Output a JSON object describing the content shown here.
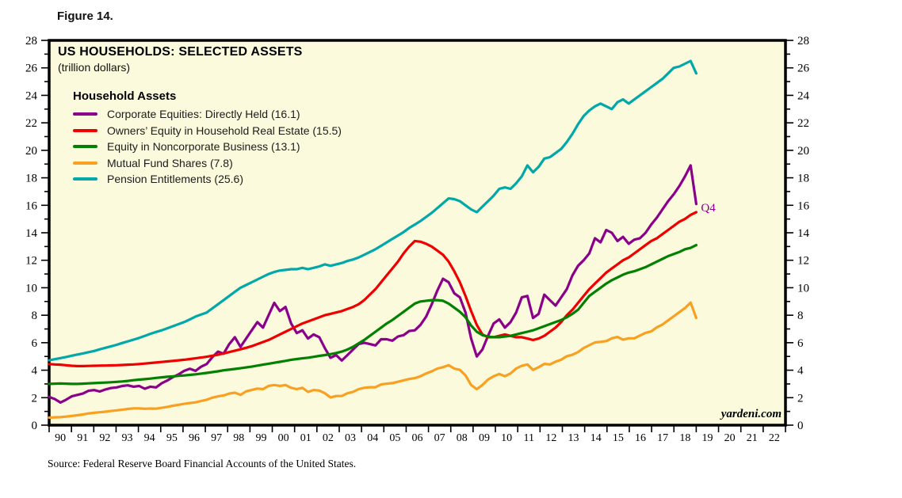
{
  "figure_label": "Figure 14.",
  "chart": {
    "title": "US HOUSEHOLDS: SELECTED ASSETS",
    "subtitle": "(trillion dollars)",
    "legend_header": "Household Assets",
    "annotation": "Q4",
    "watermark": "yardeni.com"
  },
  "source": "Source: Federal Reserve Board Financial Accounts of the United States.",
  "chart_data": {
    "type": "line",
    "title": "US HOUSEHOLDS: SELECTED ASSETS",
    "subtitle": "(trillion dollars)",
    "background_color": "#FBFADC",
    "frame_color": "#000000",
    "x_start": 1990,
    "x_step_years": 0.25,
    "x_axis": {
      "range": [
        1990,
        2023
      ],
      "tick_labels": [
        "90",
        "91",
        "92",
        "93",
        "94",
        "95",
        "96",
        "97",
        "98",
        "99",
        "00",
        "01",
        "02",
        "03",
        "04",
        "05",
        "06",
        "07",
        "08",
        "09",
        "10",
        "11",
        "12",
        "13",
        "14",
        "15",
        "16",
        "17",
        "18",
        "19",
        "20",
        "21",
        "22"
      ]
    },
    "y_axis": {
      "range": [
        0,
        28
      ],
      "major_step": 2,
      "minor_step": 1,
      "labels_on_both_sides": true
    },
    "annotation": {
      "text": "Q4",
      "value": 16.1,
      "color": "#8B008B"
    },
    "series": [
      {
        "name": "Corporate Equities: Directly Held (16.1)",
        "color": "#8B008B",
        "last_value": 16.1,
        "values": [
          2.05,
          1.9,
          1.65,
          1.85,
          2.1,
          2.2,
          2.3,
          2.5,
          2.55,
          2.45,
          2.6,
          2.7,
          2.75,
          2.85,
          2.9,
          2.8,
          2.85,
          2.65,
          2.8,
          2.75,
          3.05,
          3.25,
          3.5,
          3.7,
          3.95,
          4.1,
          3.95,
          4.25,
          4.45,
          4.95,
          5.35,
          5.2,
          5.9,
          6.4,
          5.7,
          6.3,
          6.9,
          7.5,
          7.1,
          8.0,
          8.9,
          8.3,
          8.6,
          7.4,
          6.7,
          6.9,
          6.3,
          6.6,
          6.4,
          5.6,
          4.9,
          5.1,
          4.7,
          5.1,
          5.5,
          5.9,
          6.0,
          5.9,
          5.8,
          6.25,
          6.25,
          6.15,
          6.45,
          6.55,
          6.85,
          6.9,
          7.3,
          7.9,
          8.8,
          9.8,
          10.65,
          10.4,
          9.6,
          9.3,
          8.2,
          6.3,
          5.0,
          5.5,
          6.5,
          7.4,
          7.7,
          7.1,
          7.5,
          8.2,
          9.3,
          9.4,
          7.8,
          8.1,
          9.5,
          9.1,
          8.7,
          9.3,
          9.9,
          10.9,
          11.6,
          12.0,
          12.5,
          13.6,
          13.3,
          14.2,
          14.0,
          13.4,
          13.7,
          13.2,
          13.5,
          13.6,
          14.0,
          14.6,
          15.1,
          15.7,
          16.3,
          16.8,
          17.4,
          18.1,
          18.9,
          16.1
        ]
      },
      {
        "name": "Owners’ Equity in Household Real Estate (15.5)",
        "color": "#EE0000",
        "last_value": 15.5,
        "values": [
          4.45,
          4.42,
          4.4,
          4.36,
          4.32,
          4.3,
          4.3,
          4.31,
          4.32,
          4.33,
          4.34,
          4.35,
          4.36,
          4.38,
          4.4,
          4.42,
          4.45,
          4.48,
          4.52,
          4.56,
          4.6,
          4.64,
          4.68,
          4.72,
          4.76,
          4.81,
          4.86,
          4.92,
          4.98,
          5.05,
          5.13,
          5.22,
          5.32,
          5.42,
          5.52,
          5.63,
          5.75,
          5.9,
          6.05,
          6.2,
          6.4,
          6.6,
          6.8,
          7.0,
          7.2,
          7.4,
          7.55,
          7.7,
          7.85,
          8.0,
          8.1,
          8.2,
          8.3,
          8.45,
          8.6,
          8.8,
          9.1,
          9.5,
          9.9,
          10.4,
          10.9,
          11.4,
          11.9,
          12.5,
          13.0,
          13.4,
          13.35,
          13.2,
          13.0,
          12.7,
          12.4,
          11.9,
          11.2,
          10.4,
          9.4,
          8.3,
          7.3,
          6.6,
          6.4,
          6.4,
          6.5,
          6.6,
          6.5,
          6.4,
          6.4,
          6.3,
          6.2,
          6.3,
          6.5,
          6.8,
          7.1,
          7.5,
          8.0,
          8.4,
          8.9,
          9.4,
          9.9,
          10.3,
          10.7,
          11.1,
          11.4,
          11.7,
          12.0,
          12.2,
          12.5,
          12.8,
          13.1,
          13.4,
          13.6,
          13.9,
          14.2,
          14.5,
          14.8,
          15.0,
          15.3,
          15.5
        ]
      },
      {
        "name": "Equity in Noncorporate Business (13.1)",
        "color": "#018001",
        "last_value": 13.1,
        "values": [
          3.0,
          3.02,
          3.03,
          3.02,
          3.0,
          3.0,
          3.02,
          3.04,
          3.06,
          3.08,
          3.1,
          3.12,
          3.15,
          3.18,
          3.22,
          3.27,
          3.31,
          3.35,
          3.39,
          3.44,
          3.48,
          3.52,
          3.55,
          3.59,
          3.62,
          3.66,
          3.7,
          3.75,
          3.8,
          3.86,
          3.92,
          3.99,
          4.04,
          4.09,
          4.14,
          4.2,
          4.26,
          4.33,
          4.4,
          4.47,
          4.54,
          4.61,
          4.68,
          4.76,
          4.81,
          4.86,
          4.91,
          4.97,
          5.04,
          5.1,
          5.17,
          5.25,
          5.35,
          5.5,
          5.7,
          5.95,
          6.2,
          6.5,
          6.8,
          7.1,
          7.4,
          7.65,
          7.95,
          8.25,
          8.55,
          8.85,
          9.0,
          9.05,
          9.1,
          9.1,
          9.05,
          8.85,
          8.55,
          8.25,
          7.85,
          7.25,
          6.8,
          6.55,
          6.45,
          6.4,
          6.4,
          6.45,
          6.5,
          6.6,
          6.7,
          6.8,
          6.9,
          7.05,
          7.2,
          7.35,
          7.5,
          7.65,
          7.85,
          8.1,
          8.4,
          8.9,
          9.4,
          9.7,
          10.0,
          10.3,
          10.55,
          10.75,
          10.95,
          11.1,
          11.2,
          11.35,
          11.5,
          11.7,
          11.9,
          12.1,
          12.3,
          12.45,
          12.6,
          12.8,
          12.9,
          13.1
        ]
      },
      {
        "name": "Mutual Fund Shares (7.8)",
        "color": "#FAA021",
        "last_value": 7.8,
        "values": [
          0.55,
          0.57,
          0.58,
          0.62,
          0.67,
          0.72,
          0.78,
          0.85,
          0.9,
          0.94,
          0.98,
          1.03,
          1.08,
          1.13,
          1.18,
          1.22,
          1.22,
          1.19,
          1.21,
          1.2,
          1.26,
          1.33,
          1.41,
          1.48,
          1.55,
          1.61,
          1.66,
          1.76,
          1.85,
          2.0,
          2.1,
          2.16,
          2.3,
          2.36,
          2.2,
          2.46,
          2.56,
          2.66,
          2.62,
          2.86,
          2.92,
          2.86,
          2.92,
          2.72,
          2.62,
          2.72,
          2.42,
          2.56,
          2.52,
          2.32,
          2.02,
          2.12,
          2.12,
          2.32,
          2.42,
          2.62,
          2.72,
          2.76,
          2.76,
          2.96,
          3.02,
          3.06,
          3.16,
          3.26,
          3.36,
          3.42,
          3.56,
          3.76,
          3.92,
          4.12,
          4.22,
          4.36,
          4.12,
          4.02,
          3.62,
          2.92,
          2.62,
          2.92,
          3.32,
          3.56,
          3.72,
          3.56,
          3.76,
          4.12,
          4.32,
          4.42,
          4.02,
          4.22,
          4.46,
          4.42,
          4.62,
          4.76,
          5.02,
          5.12,
          5.32,
          5.62,
          5.82,
          6.02,
          6.06,
          6.12,
          6.32,
          6.42,
          6.22,
          6.32,
          6.32,
          6.52,
          6.72,
          6.82,
          7.12,
          7.32,
          7.62,
          7.92,
          8.22,
          8.52,
          8.92,
          7.8
        ]
      },
      {
        "name": "Pension Entitlements (25.6)",
        "color": "#00A8A8",
        "last_value": 25.6,
        "values": [
          4.72,
          4.8,
          4.88,
          4.96,
          5.05,
          5.14,
          5.22,
          5.31,
          5.4,
          5.52,
          5.63,
          5.74,
          5.85,
          5.98,
          6.1,
          6.22,
          6.35,
          6.5,
          6.65,
          6.78,
          6.9,
          7.05,
          7.2,
          7.35,
          7.5,
          7.7,
          7.9,
          8.05,
          8.2,
          8.5,
          8.8,
          9.1,
          9.4,
          9.7,
          10.0,
          10.2,
          10.4,
          10.6,
          10.8,
          11.0,
          11.15,
          11.25,
          11.3,
          11.35,
          11.35,
          11.45,
          11.35,
          11.45,
          11.55,
          11.7,
          11.6,
          11.7,
          11.8,
          11.95,
          12.05,
          12.2,
          12.4,
          12.6,
          12.8,
          13.05,
          13.3,
          13.55,
          13.8,
          14.05,
          14.35,
          14.6,
          14.85,
          15.15,
          15.45,
          15.8,
          16.15,
          16.5,
          16.45,
          16.3,
          16.0,
          15.7,
          15.5,
          15.9,
          16.3,
          16.7,
          17.2,
          17.3,
          17.2,
          17.6,
          18.1,
          18.9,
          18.4,
          18.8,
          19.4,
          19.5,
          19.8,
          20.1,
          20.6,
          21.2,
          21.9,
          22.5,
          22.9,
          23.2,
          23.4,
          23.2,
          23.0,
          23.5,
          23.7,
          23.4,
          23.7,
          24.0,
          24.3,
          24.6,
          24.9,
          25.2,
          25.6,
          26.0,
          26.1,
          26.3,
          26.5,
          25.6
        ]
      }
    ]
  }
}
